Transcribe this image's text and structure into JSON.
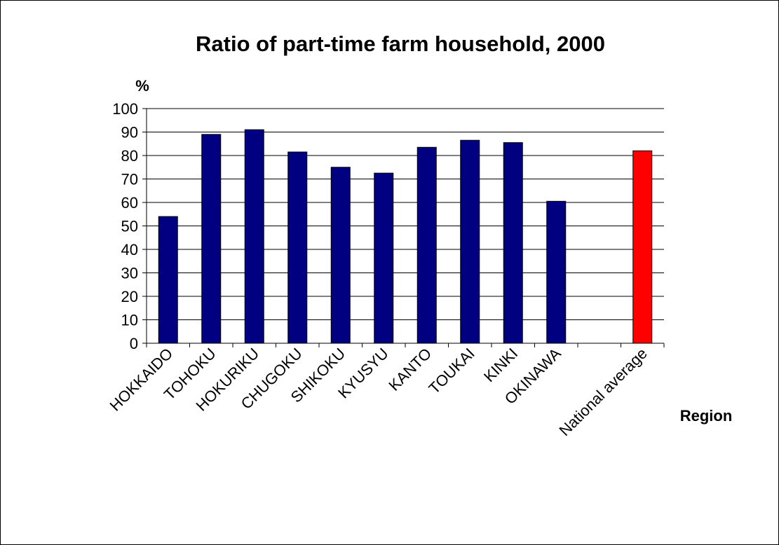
{
  "chart_data": {
    "type": "bar",
    "title": "Ratio of part-time farm household, 2000",
    "xlabel": "Region",
    "ylabel": "%",
    "ylim": [
      0,
      100
    ],
    "yticks": [
      0,
      10,
      20,
      30,
      40,
      50,
      60,
      70,
      80,
      90,
      100
    ],
    "categories": [
      "HOKKAIDO",
      "TOHOKU",
      "HOKURIKU",
      "CHUGOKU",
      "SHIKOKU",
      "KYUSYU",
      "KANTO",
      "TOUKAI",
      "KINKI",
      "OKINAWA",
      "",
      "National average"
    ],
    "values": [
      54,
      89,
      91,
      81.5,
      75,
      72.5,
      83.5,
      86.5,
      85.5,
      60.5,
      null,
      82
    ],
    "bar_colors": [
      "#000080",
      "#000080",
      "#000080",
      "#000080",
      "#000080",
      "#000080",
      "#000080",
      "#000080",
      "#000080",
      "#000080",
      "#000080",
      "#ff0000"
    ],
    "grid": true,
    "legend": "none"
  }
}
